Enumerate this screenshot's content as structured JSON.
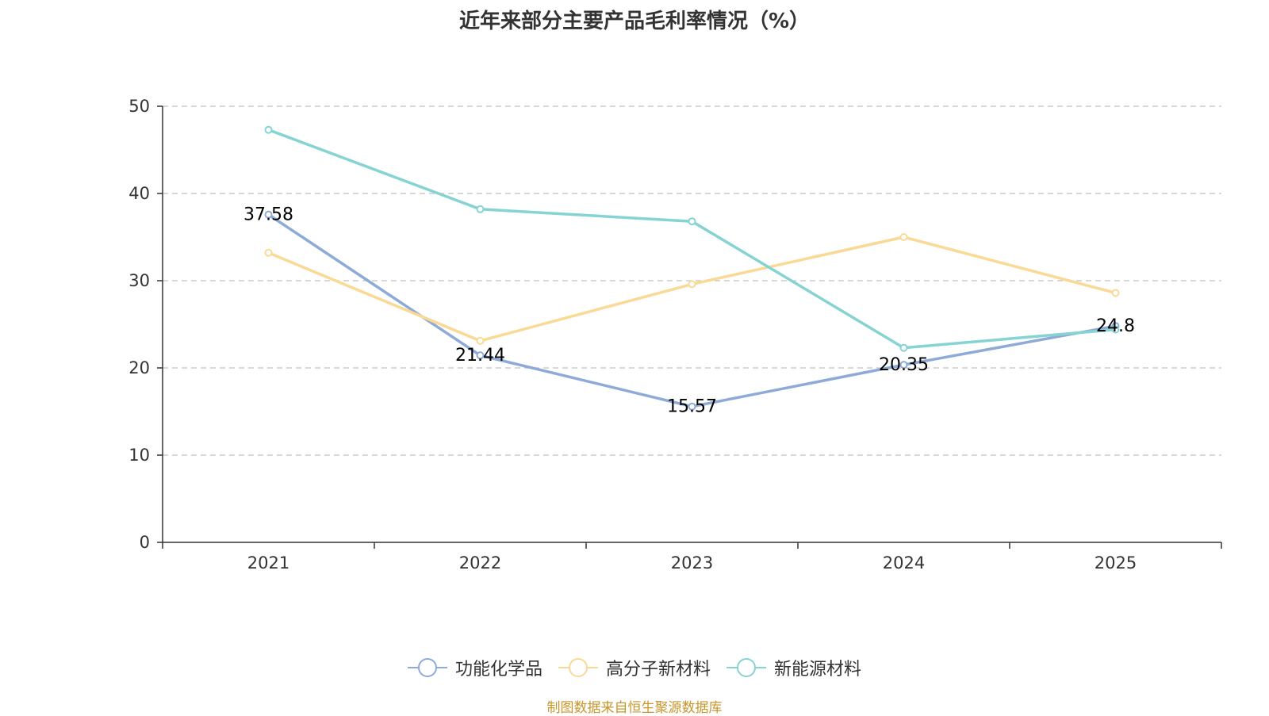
{
  "chart_data": {
    "type": "line",
    "title": "近年来部分主要产品毛利率情况（%）",
    "categories": [
      "2021",
      "2022",
      "2023",
      "2024",
      "2025"
    ],
    "ylim": [
      0,
      50
    ],
    "yticks": [
      0,
      10,
      20,
      30,
      40,
      50
    ],
    "grid": true,
    "legend_position": "bottom",
    "series": [
      {
        "name": "功能化学品",
        "color": "#8eaad8",
        "values": [
          37.58,
          21.44,
          15.57,
          20.35,
          24.8
        ],
        "labels": [
          "37.58",
          "21.44",
          "15.57",
          "20.35",
          "24.8"
        ]
      },
      {
        "name": "高分子新材料",
        "color": "#fad995",
        "values": [
          33.2,
          23.1,
          29.6,
          35.0,
          28.6
        ]
      },
      {
        "name": "新能源材料",
        "color": "#85d3d3",
        "values": [
          47.3,
          38.2,
          36.8,
          22.3,
          24.4
        ]
      }
    ]
  },
  "source": "制图数据来自恒生聚源数据库"
}
